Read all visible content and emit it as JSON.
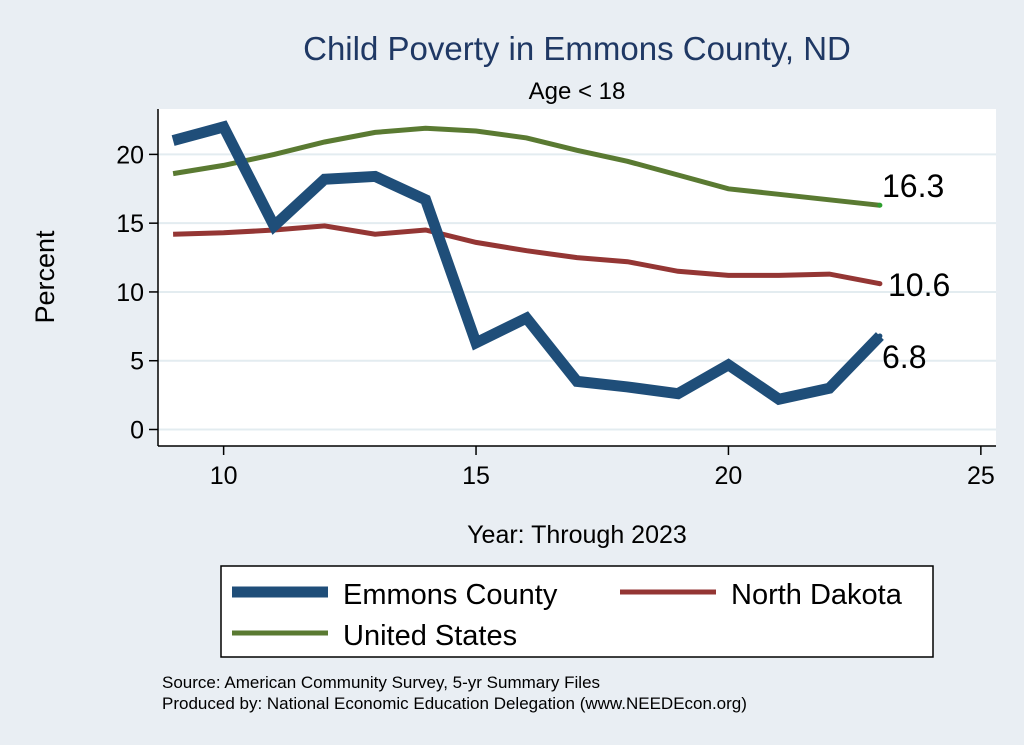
{
  "chart_data": {
    "type": "line",
    "title": "Child Poverty in Emmons County, ND",
    "subtitle": "Age < 18",
    "xlabel": "Year: Through 2023",
    "ylabel": "Percent",
    "xlim": [
      8.7,
      25.3
    ],
    "ylim": [
      -1.2,
      23.3
    ],
    "xticks": [
      10,
      15,
      20,
      25
    ],
    "yticks": [
      0,
      5,
      10,
      15,
      20
    ],
    "grid": true,
    "series": [
      {
        "name": "Emmons County",
        "color": "#1f4e79",
        "x": [
          9,
          10,
          11,
          12,
          13,
          14,
          15,
          16,
          17,
          18,
          19,
          20,
          21,
          22,
          23
        ],
        "values": [
          21.0,
          22.0,
          14.8,
          18.2,
          18.4,
          16.7,
          6.3,
          8.1,
          3.5,
          3.1,
          2.6,
          4.7,
          2.2,
          3.0,
          6.8
        ],
        "end_label": "6.8"
      },
      {
        "name": "North Dakota",
        "color": "#943634",
        "x": [
          9,
          10,
          11,
          12,
          13,
          14,
          15,
          16,
          17,
          18,
          19,
          20,
          21,
          22,
          23
        ],
        "values": [
          14.2,
          14.3,
          14.5,
          14.8,
          14.2,
          14.5,
          13.6,
          13.0,
          12.5,
          12.2,
          11.5,
          11.2,
          11.2,
          11.3,
          10.6
        ],
        "end_label": "10.6"
      },
      {
        "name": "United States",
        "color": "#5a7a32",
        "x": [
          9,
          10,
          11,
          12,
          13,
          14,
          15,
          16,
          17,
          18,
          19,
          20,
          21,
          22,
          23
        ],
        "values": [
          18.6,
          19.2,
          20.0,
          20.9,
          21.6,
          21.9,
          21.7,
          21.2,
          20.3,
          19.5,
          18.5,
          17.5,
          17.1,
          16.7,
          16.3
        ],
        "end_label": "16.3"
      }
    ],
    "legend": {
      "placement": "bottom",
      "entries": [
        "Emmons County",
        "North Dakota",
        "United States"
      ]
    }
  },
  "footnote": {
    "source": "Source: American Community Survey, 5-yr Summary Files",
    "produced_by": "Produced by: National Economic Education Delegation (www.NEEDEcon.org)"
  }
}
